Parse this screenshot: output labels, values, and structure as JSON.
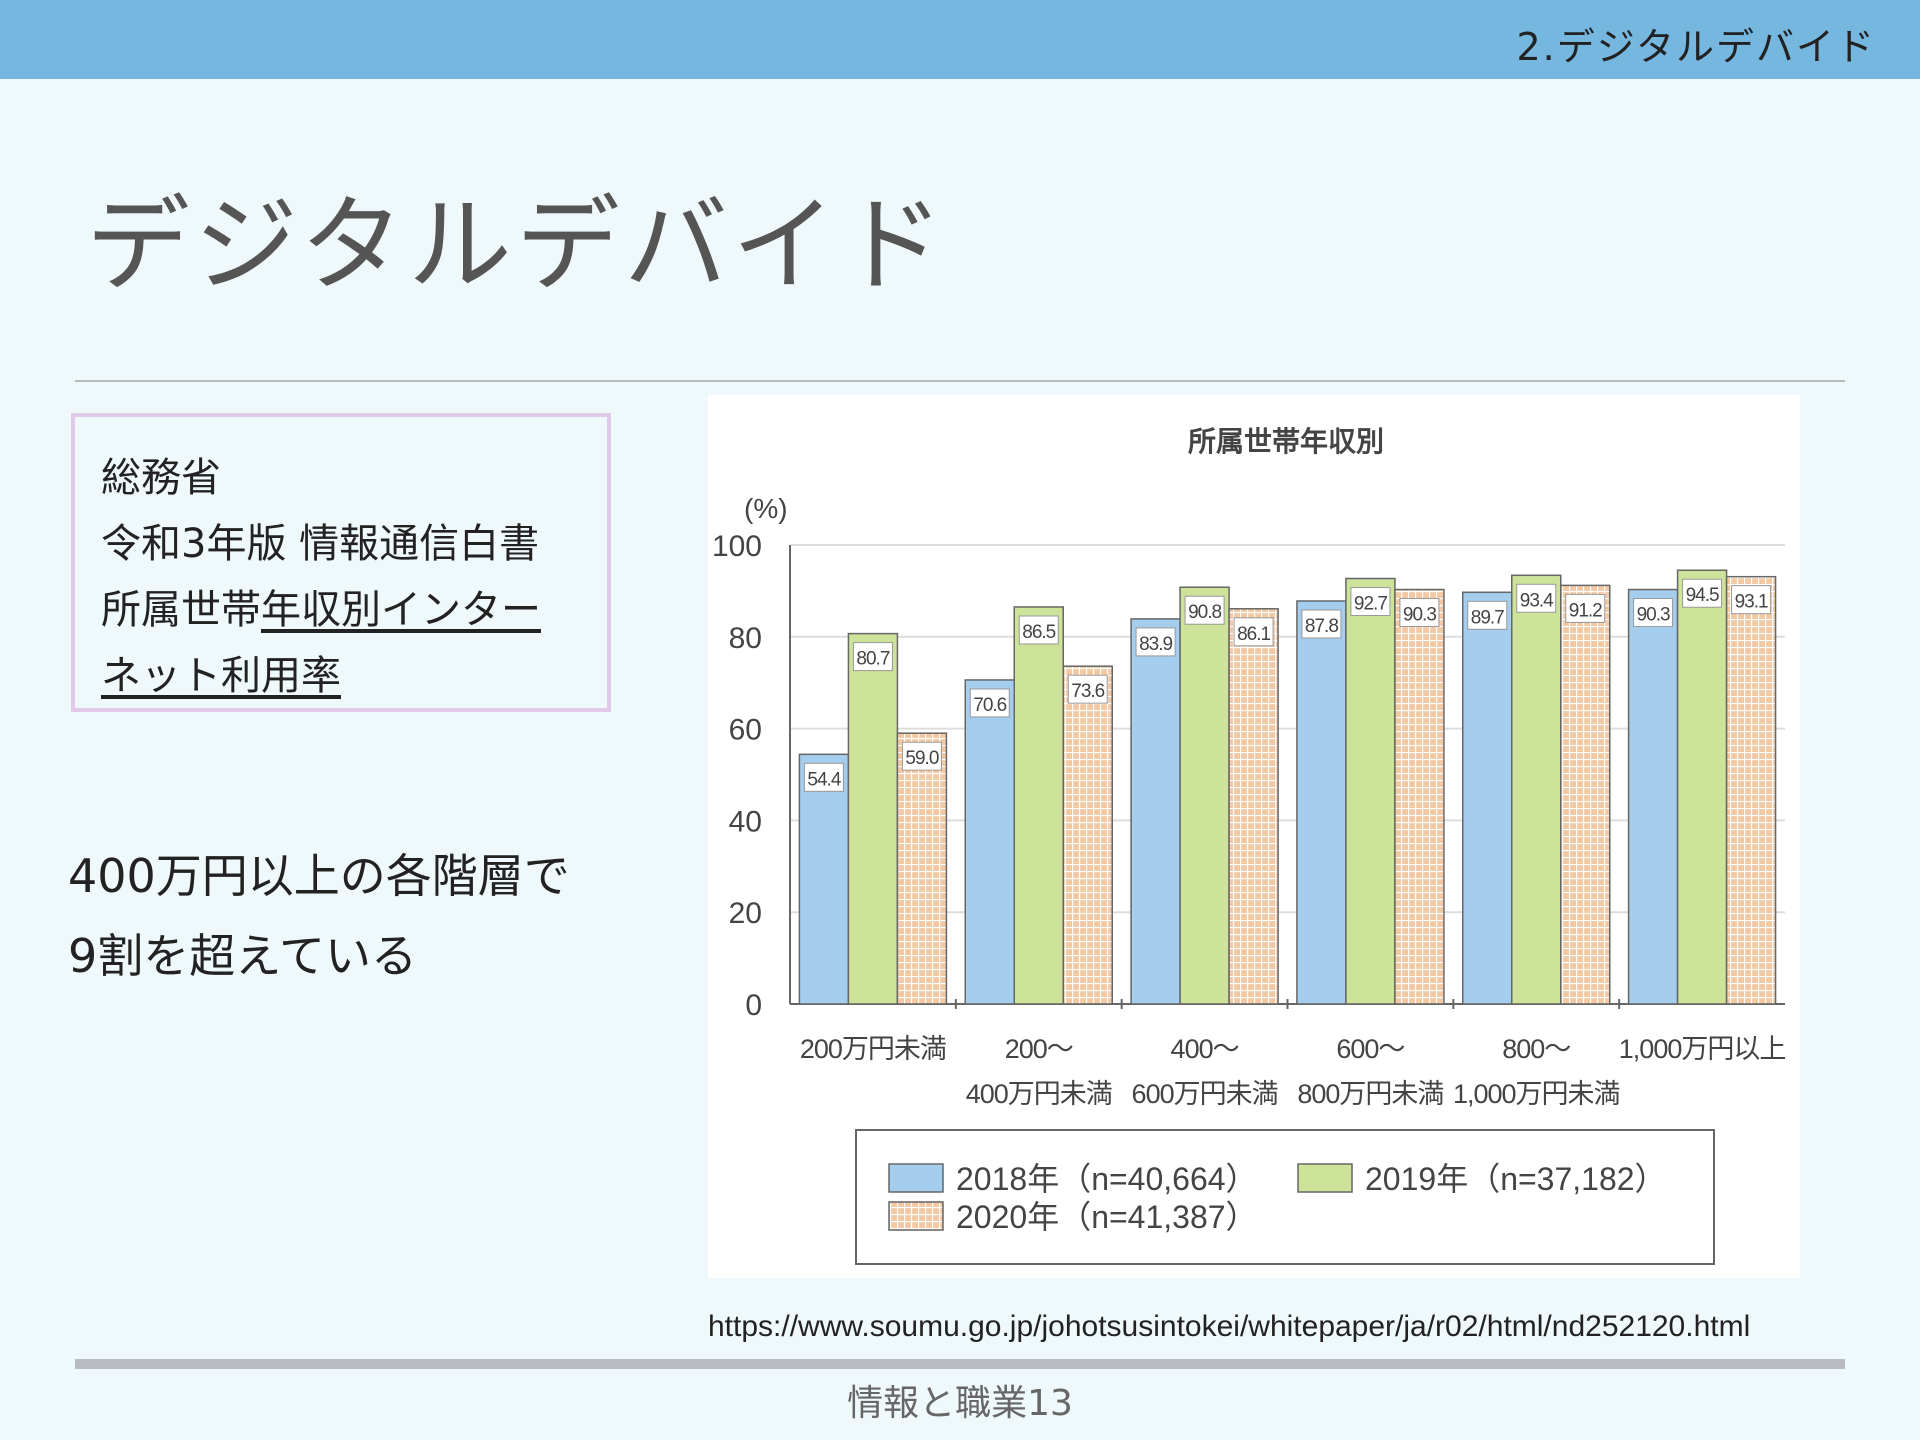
{
  "header": {
    "section": "2.デジタルデバイド"
  },
  "slide": {
    "title": "デジタルデバイド"
  },
  "source_box": {
    "lines": [
      "総務省",
      "令和3年版 情報通信白書"
    ],
    "line3_plain": "所属世帯",
    "line3_link": "年収別インター",
    "line4_link": "ネット利用率"
  },
  "note": {
    "lines": [
      "400万円以上の各階層で",
      "9割を超えている"
    ]
  },
  "url": "https://www.soumu.go.jp/johotsusintokei/whitepaper/ja/r02/html/nd252120.html",
  "footer": "情報と職業13",
  "chart_data": {
    "type": "bar",
    "title": "所属世帯年収別",
    "ylabel": "(%)",
    "ylim": [
      0,
      100
    ],
    "yticks": [
      0,
      20,
      40,
      60,
      80,
      100
    ],
    "grid": true,
    "legend_position": "bottom",
    "categories": [
      [
        "200万円未満"
      ],
      [
        "200～",
        "400万円未満"
      ],
      [
        "400～",
        "600万円未満"
      ],
      [
        "600～",
        "800万円未満"
      ],
      [
        "800～",
        "1,000万円未満"
      ],
      [
        "1,000万円以上"
      ]
    ],
    "series": [
      {
        "name": "2018年（n=40,664）",
        "color": "#a4cdee",
        "values": [
          54.4,
          70.6,
          83.9,
          87.8,
          89.7,
          90.3
        ]
      },
      {
        "name": "2019年（n=37,182）",
        "color": "#cde39a",
        "values": [
          80.7,
          86.5,
          90.8,
          92.7,
          93.4,
          94.5
        ]
      },
      {
        "name": "2020年（n=41,387）",
        "color": "#f3c9a4",
        "pattern": "grid",
        "values": [
          59.0,
          73.6,
          86.1,
          90.3,
          91.2,
          93.1
        ]
      }
    ]
  }
}
